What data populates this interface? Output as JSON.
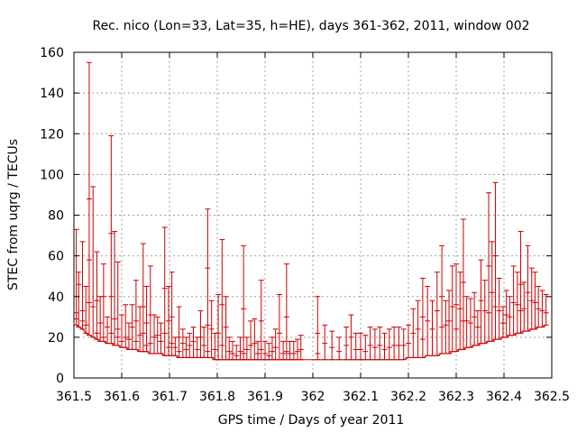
{
  "chart_data": {
    "type": "errorbar",
    "title": "Rec. nico (Lon=33, Lat=35, h=HE), days 361-362, 2011, window 002",
    "xlabel": "GPS time / Days of year 2011",
    "ylabel": "STEC from uqrg / TECUs",
    "xlim": [
      361.5,
      362.5
    ],
    "ylim": [
      0,
      160
    ],
    "grid": true,
    "series_color": "#cc0000",
    "x_ticks": [
      "361.5",
      "361.6",
      "361.7",
      "361.8",
      "361.9",
      "362",
      "362.1",
      "362.2",
      "362.3",
      "362.4",
      "362.5"
    ],
    "y_ticks": [
      "0",
      "20",
      "40",
      "60",
      "80",
      "100",
      "120",
      "140",
      "160"
    ],
    "bars": [
      [
        361.505,
        26,
        73
      ],
      [
        361.51,
        25,
        52
      ],
      [
        361.518,
        24,
        67
      ],
      [
        361.525,
        22,
        45
      ],
      [
        361.532,
        21,
        155
      ],
      [
        361.54,
        20,
        94
      ],
      [
        361.548,
        19,
        62
      ],
      [
        361.555,
        18,
        40
      ],
      [
        361.562,
        18,
        56
      ],
      [
        361.57,
        17,
        30
      ],
      [
        361.578,
        17,
        119
      ],
      [
        361.585,
        16,
        72
      ],
      [
        361.592,
        16,
        57
      ],
      [
        361.6,
        15,
        31
      ],
      [
        361.608,
        15,
        36
      ],
      [
        361.615,
        14,
        27
      ],
      [
        361.622,
        14,
        36
      ],
      [
        361.63,
        14,
        48
      ],
      [
        361.638,
        13,
        35
      ],
      [
        361.645,
        13,
        66
      ],
      [
        361.652,
        13,
        45
      ],
      [
        361.66,
        12,
        55
      ],
      [
        361.668,
        12,
        31
      ],
      [
        361.675,
        12,
        30
      ],
      [
        361.682,
        12,
        27
      ],
      [
        361.69,
        11,
        74
      ],
      [
        361.698,
        11,
        45
      ],
      [
        361.705,
        11,
        52
      ],
      [
        361.712,
        11,
        20
      ],
      [
        361.72,
        10,
        35
      ],
      [
        361.728,
        10,
        24
      ],
      [
        361.735,
        10,
        20
      ],
      [
        361.742,
        10,
        22
      ],
      [
        361.75,
        10,
        25
      ],
      [
        361.758,
        10,
        20
      ],
      [
        361.765,
        10,
        33
      ],
      [
        361.772,
        10,
        25
      ],
      [
        361.78,
        10,
        83
      ],
      [
        361.788,
        10,
        38
      ],
      [
        361.795,
        9,
        22
      ],
      [
        361.802,
        9,
        41
      ],
      [
        361.81,
        9,
        68
      ],
      [
        361.818,
        9,
        40
      ],
      [
        361.825,
        9,
        20
      ],
      [
        361.832,
        9,
        18
      ],
      [
        361.84,
        9,
        16
      ],
      [
        361.848,
        9,
        20
      ],
      [
        361.855,
        9,
        65
      ],
      [
        361.862,
        9,
        20
      ],
      [
        361.87,
        9,
        28
      ],
      [
        361.878,
        9,
        29
      ],
      [
        361.885,
        9,
        18
      ],
      [
        361.892,
        9,
        48
      ],
      [
        361.9,
        9,
        18
      ],
      [
        361.908,
        9,
        17
      ],
      [
        361.915,
        9,
        20
      ],
      [
        361.922,
        9,
        24
      ],
      [
        361.93,
        9,
        41
      ],
      [
        361.938,
        9,
        18
      ],
      [
        361.945,
        9,
        56
      ],
      [
        361.952,
        9,
        18
      ],
      [
        361.96,
        9,
        18
      ],
      [
        361.968,
        9,
        19
      ],
      [
        361.975,
        9,
        21
      ],
      [
        362.01,
        9,
        40
      ],
      [
        362.025,
        9,
        26
      ],
      [
        362.04,
        9,
        23
      ],
      [
        362.055,
        9,
        20
      ],
      [
        362.07,
        9,
        25
      ],
      [
        362.08,
        9,
        31
      ],
      [
        362.09,
        9,
        22
      ],
      [
        362.1,
        9,
        22
      ],
      [
        362.11,
        9,
        21
      ],
      [
        362.12,
        9,
        25
      ],
      [
        362.13,
        9,
        24
      ],
      [
        362.14,
        9,
        25
      ],
      [
        362.15,
        9,
        22
      ],
      [
        362.16,
        9,
        24
      ],
      [
        362.17,
        9,
        25
      ],
      [
        362.18,
        9,
        25
      ],
      [
        362.19,
        9,
        24
      ],
      [
        362.2,
        10,
        26
      ],
      [
        362.21,
        10,
        34
      ],
      [
        362.22,
        10,
        38
      ],
      [
        362.23,
        10,
        49
      ],
      [
        362.24,
        11,
        45
      ],
      [
        362.25,
        11,
        38
      ],
      [
        362.26,
        11,
        52
      ],
      [
        362.27,
        12,
        65
      ],
      [
        362.278,
        12,
        38
      ],
      [
        362.285,
        12,
        43
      ],
      [
        362.292,
        13,
        55
      ],
      [
        362.3,
        13,
        56
      ],
      [
        362.308,
        14,
        52
      ],
      [
        362.315,
        14,
        78
      ],
      [
        362.322,
        15,
        40
      ],
      [
        362.33,
        15,
        39
      ],
      [
        362.338,
        16,
        42
      ],
      [
        362.345,
        16,
        33
      ],
      [
        362.352,
        17,
        58
      ],
      [
        362.36,
        17,
        48
      ],
      [
        362.368,
        18,
        91
      ],
      [
        362.375,
        18,
        67
      ],
      [
        362.382,
        19,
        96
      ],
      [
        362.39,
        19,
        49
      ],
      [
        362.398,
        20,
        35
      ],
      [
        362.405,
        20,
        43
      ],
      [
        362.412,
        21,
        40
      ],
      [
        362.42,
        21,
        55
      ],
      [
        362.428,
        22,
        52
      ],
      [
        362.435,
        22,
        72
      ],
      [
        362.442,
        23,
        47
      ],
      [
        362.45,
        23,
        65
      ],
      [
        362.458,
        24,
        54
      ],
      [
        362.465,
        24,
        52
      ],
      [
        362.472,
        25,
        45
      ],
      [
        362.48,
        25,
        43
      ],
      [
        362.488,
        26,
        41
      ]
    ],
    "marks": [
      [
        361.505,
        32
      ],
      [
        361.505,
        29
      ],
      [
        361.51,
        46
      ],
      [
        361.518,
        33
      ],
      [
        361.518,
        28
      ],
      [
        361.525,
        26
      ],
      [
        361.532,
        88
      ],
      [
        361.532,
        58
      ],
      [
        361.532,
        37
      ],
      [
        361.54,
        35
      ],
      [
        361.548,
        38
      ],
      [
        361.548,
        22
      ],
      [
        361.555,
        27
      ],
      [
        361.562,
        40
      ],
      [
        361.562,
        20
      ],
      [
        361.57,
        25
      ],
      [
        361.578,
        71
      ],
      [
        361.578,
        40
      ],
      [
        361.578,
        22
      ],
      [
        361.585,
        29
      ],
      [
        361.592,
        24
      ],
      [
        361.592,
        20
      ],
      [
        361.6,
        18
      ],
      [
        361.608,
        20
      ],
      [
        361.615,
        19
      ],
      [
        361.622,
        25
      ],
      [
        361.63,
        28
      ],
      [
        361.63,
        18
      ],
      [
        361.638,
        21
      ],
      [
        361.645,
        35
      ],
      [
        361.645,
        22
      ],
      [
        361.652,
        27
      ],
      [
        361.652,
        16
      ],
      [
        361.66,
        31
      ],
      [
        361.66,
        17
      ],
      [
        361.668,
        20
      ],
      [
        361.675,
        21
      ],
      [
        361.682,
        18
      ],
      [
        361.69,
        44
      ],
      [
        361.69,
        22
      ],
      [
        361.698,
        28
      ],
      [
        361.698,
        15
      ],
      [
        361.705,
        30
      ],
      [
        361.705,
        17
      ],
      [
        361.712,
        15
      ],
      [
        361.72,
        20
      ],
      [
        361.72,
        13
      ],
      [
        361.728,
        17
      ],
      [
        361.735,
        14
      ],
      [
        361.742,
        16
      ],
      [
        361.75,
        18
      ],
      [
        361.758,
        14
      ],
      [
        361.765,
        20
      ],
      [
        361.772,
        16
      ],
      [
        361.78,
        54
      ],
      [
        361.78,
        26
      ],
      [
        361.78,
        13
      ],
      [
        361.788,
        24
      ],
      [
        361.795,
        14
      ],
      [
        361.802,
        22
      ],
      [
        361.81,
        36
      ],
      [
        361.81,
        16
      ],
      [
        361.818,
        25
      ],
      [
        361.825,
        13
      ],
      [
        361.832,
        12
      ],
      [
        361.84,
        11
      ],
      [
        361.848,
        13
      ],
      [
        361.855,
        34
      ],
      [
        361.855,
        12
      ],
      [
        361.862,
        14
      ],
      [
        361.87,
        16
      ],
      [
        361.878,
        17
      ],
      [
        361.885,
        12
      ],
      [
        361.892,
        28
      ],
      [
        361.892,
        14
      ],
      [
        361.9,
        12
      ],
      [
        361.908,
        11
      ],
      [
        361.915,
        13
      ],
      [
        361.922,
        15
      ],
      [
        361.93,
        22
      ],
      [
        361.938,
        12
      ],
      [
        361.945,
        30
      ],
      [
        361.945,
        13
      ],
      [
        361.952,
        12
      ],
      [
        361.96,
        12
      ],
      [
        361.968,
        13
      ],
      [
        361.975,
        14
      ],
      [
        362.01,
        22
      ],
      [
        362.01,
        12
      ],
      [
        362.025,
        17
      ],
      [
        362.04,
        15
      ],
      [
        362.055,
        13
      ],
      [
        362.07,
        16
      ],
      [
        362.08,
        20
      ],
      [
        362.09,
        14
      ],
      [
        362.1,
        14
      ],
      [
        362.11,
        13
      ],
      [
        362.12,
        16
      ],
      [
        362.13,
        15
      ],
      [
        362.14,
        16
      ],
      [
        362.15,
        14
      ],
      [
        362.16,
        15
      ],
      [
        362.17,
        16
      ],
      [
        362.18,
        16
      ],
      [
        362.19,
        16
      ],
      [
        362.2,
        17
      ],
      [
        362.21,
        22
      ],
      [
        362.22,
        24
      ],
      [
        362.23,
        30
      ],
      [
        362.23,
        19
      ],
      [
        362.24,
        28
      ],
      [
        362.25,
        24
      ],
      [
        362.26,
        33
      ],
      [
        362.27,
        40
      ],
      [
        362.27,
        25
      ],
      [
        362.278,
        26
      ],
      [
        362.285,
        28
      ],
      [
        362.292,
        35
      ],
      [
        362.3,
        36
      ],
      [
        362.3,
        24
      ],
      [
        362.308,
        34
      ],
      [
        362.315,
        47
      ],
      [
        362.315,
        28
      ],
      [
        362.322,
        28
      ],
      [
        362.33,
        27
      ],
      [
        362.338,
        30
      ],
      [
        362.345,
        25
      ],
      [
        362.352,
        38
      ],
      [
        362.36,
        33
      ],
      [
        362.368,
        55
      ],
      [
        362.368,
        32
      ],
      [
        362.375,
        42
      ],
      [
        362.382,
        60
      ],
      [
        362.382,
        35
      ],
      [
        362.39,
        33
      ],
      [
        362.398,
        27
      ],
      [
        362.405,
        31
      ],
      [
        362.412,
        30
      ],
      [
        362.42,
        37
      ],
      [
        362.428,
        36
      ],
      [
        362.435,
        46
      ],
      [
        362.435,
        33
      ],
      [
        362.442,
        34
      ],
      [
        362.45,
        42
      ],
      [
        362.458,
        38
      ],
      [
        362.465,
        37
      ],
      [
        362.472,
        34
      ],
      [
        362.48,
        33
      ],
      [
        362.488,
        32
      ]
    ]
  }
}
